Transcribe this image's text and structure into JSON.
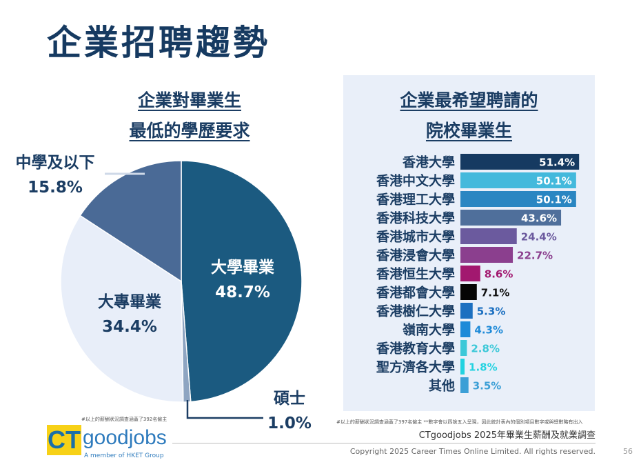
{
  "title": "企業招聘趨勢",
  "left_heading": [
    "企業對畢業生",
    "最低的學歷要求"
  ],
  "right_heading": [
    "企業最希望聘請的",
    "院校畢業生"
  ],
  "left_note": "#以上的薪酬狀況調查涵蓋了392名僱主",
  "right_note": "#以上的薪酬狀況調查涵蓋了397名僱主   **數字會以四捨五入呈現，因此統計表內的個別項目數字或與總數略有出入",
  "survey_title": "CTgoodjobs 2025年畢業生薪酬及就業調查",
  "copyright": "Copyright 2025 Career Times Online Limited. All rights reserved.",
  "page_number": "56",
  "logo": {
    "ct": "CT",
    "name": "goodjobs",
    "tagline": "A member of HKET Group"
  },
  "colors": {
    "title": "#163a61",
    "panel_bg": "#e9eff9",
    "logo_yellow": "#f7d117",
    "logo_blue": "#2e7bbd"
  },
  "chart_data": [
    {
      "type": "pie",
      "title": "企業對畢業生最低的學歷要求",
      "slices": [
        {
          "label": "大學畢業",
          "value": 48.7,
          "display": "48.7%",
          "color": "#1b5a80"
        },
        {
          "label": "碩士",
          "value": 1.0,
          "display": "1.0%",
          "color": "#8ea5c2"
        },
        {
          "label": "大專畢業",
          "value": 34.4,
          "display": "34.4%",
          "color": "#e8eef9"
        },
        {
          "label": "中學及以下",
          "value": 15.8,
          "display": "15.8%",
          "color": "#4a6a96"
        }
      ]
    },
    {
      "type": "bar",
      "orientation": "horizontal",
      "title": "企業最希望聘請的院校畢業生",
      "categories": [
        "香港大學",
        "香港中文大學",
        "香港理工大學",
        "香港科技大學",
        "香港城市大學",
        "香港浸會大學",
        "香港恒生大學",
        "香港都會大學",
        "香港樹仁大學",
        "嶺南大學",
        "香港教育大學",
        "聖方濟各大學",
        "其他"
      ],
      "values": [
        51.4,
        50.1,
        50.1,
        43.6,
        24.4,
        22.7,
        8.6,
        7.1,
        5.3,
        4.3,
        2.8,
        1.8,
        3.5
      ],
      "value_labels": [
        "51.4%",
        "50.1%",
        "50.1%",
        "43.6%",
        "24.4%",
        "22.7%",
        "8.6%",
        "7.1%",
        "5.3%",
        "4.3%",
        "2.8%",
        "1.8%",
        "3.5%"
      ],
      "colors": [
        "#163a61",
        "#43b9dc",
        "#2a86c2",
        "#4f6f9b",
        "#6b5a9e",
        "#8b3f8e",
        "#a2186f",
        "#050505",
        "#1b6fc0",
        "#1e8ad8",
        "#3cc8d8",
        "#22d2e0",
        "#3c9fd6"
      ],
      "label_colors": [
        "#ffffff",
        "#ffffff",
        "#ffffff",
        "#ffffff",
        "#6b5a9e",
        "#8b3f8e",
        "#a2186f",
        "#111111",
        "#1b6fc0",
        "#1e8ad8",
        "#3cc8d8",
        "#22d2e0",
        "#3c9fd6"
      ],
      "labels_inside": [
        true,
        true,
        true,
        true,
        false,
        false,
        false,
        false,
        false,
        false,
        false,
        false,
        false
      ]
    }
  ]
}
